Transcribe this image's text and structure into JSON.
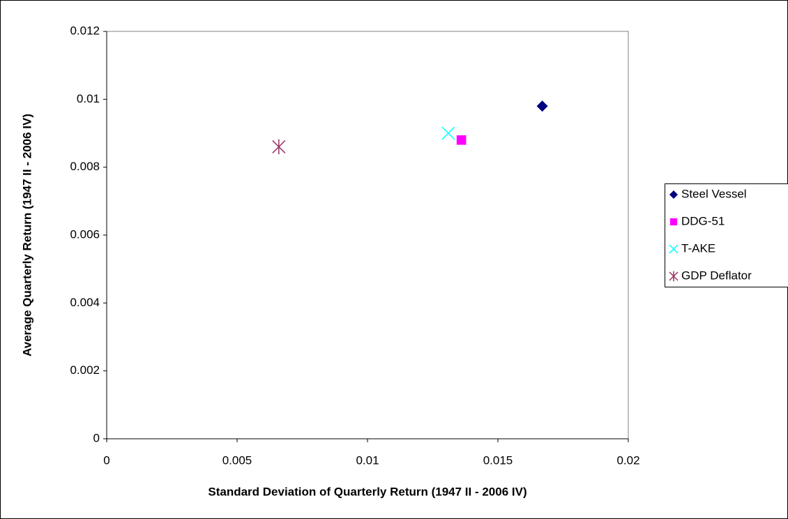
{
  "chart_data": {
    "type": "scatter",
    "x_label": "Standard Deviation of Quarterly Return (1947 II - 2006 IV)",
    "y_label": "Average Quarterly Return (1947 II - 2006 IV)",
    "xlim": [
      0,
      0.02
    ],
    "xticks": [
      0,
      0.005,
      0.01,
      0.015,
      0.02
    ],
    "ylim": [
      0,
      0.012
    ],
    "yticks": [
      0,
      0.002,
      0.004,
      0.006,
      0.008,
      0.01,
      0.012
    ],
    "grid": false,
    "legend": "right",
    "series": [
      {
        "name": "Steel Vessel",
        "color": "#000080",
        "marker": "diamond",
        "x": [
          0.0167
        ],
        "values": [
          0.0098
        ]
      },
      {
        "name": "DDG-51",
        "color": "#ff00ff",
        "marker": "square",
        "x": [
          0.0136
        ],
        "values": [
          0.0088
        ]
      },
      {
        "name": "T-AKE",
        "color": "#00ffff",
        "marker": "x",
        "x": [
          0.0131
        ],
        "values": [
          0.009
        ]
      },
      {
        "name": "GDP Deflator",
        "color": "#993366",
        "marker": "star",
        "x": [
          0.0066
        ],
        "values": [
          0.0086
        ]
      }
    ]
  }
}
